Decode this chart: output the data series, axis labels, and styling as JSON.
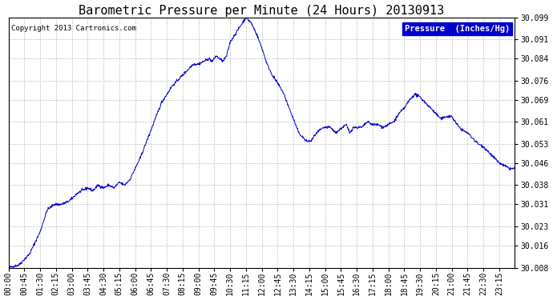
{
  "title": "Barometric Pressure per Minute (24 Hours) 20130913",
  "copyright_text": "Copyright 2013 Cartronics.com",
  "legend_label": "Pressure  (Inches/Hg)",
  "line_color": "#0000CC",
  "background_color": "#ffffff",
  "grid_color": "#b0b0b0",
  "legend_bg": "#0000CC",
  "legend_fg": "#ffffff",
  "ylim": [
    30.008,
    30.099
  ],
  "yticks": [
    30.008,
    30.016,
    30.023,
    30.031,
    30.038,
    30.046,
    30.053,
    30.061,
    30.069,
    30.076,
    30.084,
    30.091,
    30.099
  ],
  "xtick_labels": [
    "00:00",
    "00:45",
    "01:30",
    "02:15",
    "03:00",
    "03:45",
    "04:30",
    "05:15",
    "06:00",
    "06:45",
    "07:30",
    "08:15",
    "09:00",
    "09:45",
    "10:30",
    "11:15",
    "12:00",
    "12:45",
    "13:30",
    "14:15",
    "15:00",
    "15:45",
    "16:30",
    "17:15",
    "18:00",
    "18:45",
    "19:30",
    "20:15",
    "21:00",
    "21:45",
    "22:30",
    "23:15"
  ],
  "title_fontsize": 11,
  "tick_fontsize": 7,
  "copyright_fontsize": 6.5,
  "legend_fontsize": 7.5
}
